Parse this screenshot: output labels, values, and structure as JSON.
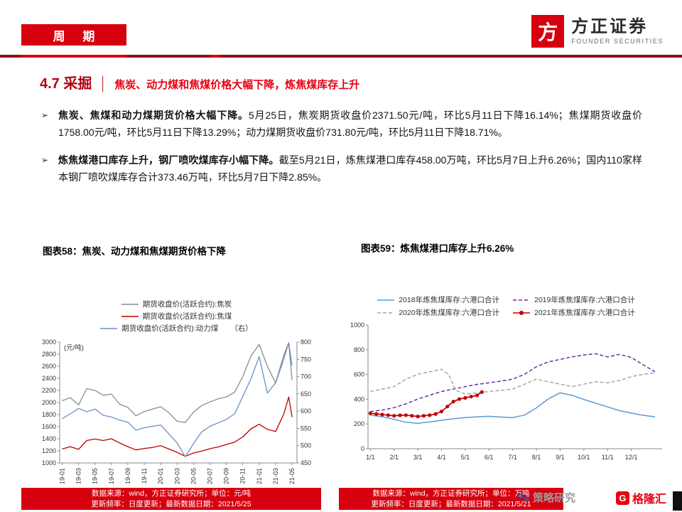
{
  "colors": {
    "accent": "#D7000F",
    "rule_dark": "#8E1216",
    "title_red": "#B00012",
    "subtitle_red": "#E60012",
    "coke_gray": "#8C8C8C",
    "coking_red": "#C00000",
    "thermal_blue": "#6B91C9",
    "y2018_blue": "#5B9BD5",
    "y2019_purple": "#7030A0",
    "y2020_gray": "#A6A6A6",
    "y2021_red": "#C00000"
  },
  "header": {
    "band": "周 期",
    "logo_mark": "方",
    "logo_cn": "方正证券",
    "logo_en": "FOUNDER SECURITIES"
  },
  "title": {
    "number": "4.7 采掘",
    "separator": "│",
    "subtitle": "焦炭、动力煤和焦煤价格大幅下降，炼焦煤库存上升"
  },
  "bullets": {
    "marker": "➢",
    "items": [
      {
        "lead": "焦炭、焦煤和动力煤期货价格大幅下降。",
        "rest": "5月25日，焦炭期货收盘价2371.50元/吨，环比5月11日下降16.14%；焦煤期货收盘价1758.00元/吨，环比5月11日下降13.29%；动力煤期货收盘价731.80元/吨，环比5月11日下降18.71%。"
      },
      {
        "lead": "炼焦煤港口库存上升，钢厂喷吹煤库存小幅下降。",
        "rest": "截至5月21日，炼焦煤港口库存458.00万吨，环比5月7日上升6.26%；国内110家样本钢厂喷吹煤库存合计373.46万吨，环比5月7日下降2.85%。"
      }
    ]
  },
  "chart_data": [
    {
      "type": "line",
      "caption": "图表58：焦炭、动力煤和焦煤期货价格下降",
      "unit_left": "(元/吨)",
      "ylim_left": [
        1000,
        3000
      ],
      "yticks_left": [
        1000,
        1200,
        1400,
        1600,
        1800,
        2000,
        2200,
        2400,
        2600,
        2800,
        3000
      ],
      "ylim_right": [
        450,
        800
      ],
      "yticks_right": [
        450,
        500,
        550,
        600,
        650,
        700,
        750,
        800
      ],
      "xlim": [
        -0.3,
        28.6
      ],
      "x_rotate": true,
      "xticks": [
        {
          "x": 0,
          "label": "19-01"
        },
        {
          "x": 2,
          "label": "19-03"
        },
        {
          "x": 4,
          "label": "19-05"
        },
        {
          "x": 6,
          "label": "19-07"
        },
        {
          "x": 8,
          "label": "19-09"
        },
        {
          "x": 10,
          "label": "19-11"
        },
        {
          "x": 12,
          "label": "20-01"
        },
        {
          "x": 14,
          "label": "20-03"
        },
        {
          "x": 16,
          "label": "20-05"
        },
        {
          "x": 18,
          "label": "20-07"
        },
        {
          "x": 20,
          "label": "20-09"
        },
        {
          "x": 22,
          "label": "20-11"
        },
        {
          "x": 24,
          "label": "21-01"
        },
        {
          "x": 26,
          "label": "21-03"
        },
        {
          "x": 28,
          "label": "21-05"
        }
      ],
      "series": [
        {
          "name": "期货收盘价(活跃合约):焦炭",
          "color": "#8C8C8C",
          "axis": "left",
          "width": 1.3,
          "points": [
            [
              0,
              2030
            ],
            [
              1,
              2080
            ],
            [
              2,
              1960
            ],
            [
              3,
              2230
            ],
            [
              4,
              2200
            ],
            [
              5,
              2120
            ],
            [
              6,
              2140
            ],
            [
              7,
              1970
            ],
            [
              8,
              1920
            ],
            [
              9,
              1780
            ],
            [
              10,
              1850
            ],
            [
              11,
              1890
            ],
            [
              12,
              1930
            ],
            [
              13,
              1830
            ],
            [
              14,
              1690
            ],
            [
              15,
              1670
            ],
            [
              16,
              1840
            ],
            [
              17,
              1950
            ],
            [
              18,
              2010
            ],
            [
              19,
              2060
            ],
            [
              20,
              2090
            ],
            [
              21,
              2170
            ],
            [
              22,
              2430
            ],
            [
              23,
              2770
            ],
            [
              24,
              2960
            ],
            [
              25,
              2600
            ],
            [
              26,
              2320
            ],
            [
              27,
              2720
            ],
            [
              27.6,
              2990
            ],
            [
              28,
              2371
            ]
          ]
        },
        {
          "name": "期货收盘价(活跃合约):焦煤",
          "color": "#C00000",
          "axis": "left",
          "width": 1.3,
          "points": [
            [
              0,
              1230
            ],
            [
              1,
              1270
            ],
            [
              2,
              1225
            ],
            [
              3,
              1370
            ],
            [
              4,
              1395
            ],
            [
              5,
              1370
            ],
            [
              6,
              1400
            ],
            [
              7,
              1330
            ],
            [
              8,
              1270
            ],
            [
              9,
              1215
            ],
            [
              10,
              1240
            ],
            [
              11,
              1255
            ],
            [
              12,
              1285
            ],
            [
              13,
              1230
            ],
            [
              14,
              1175
            ],
            [
              15,
              1110
            ],
            [
              16,
              1165
            ],
            [
              17,
              1195
            ],
            [
              18,
              1235
            ],
            [
              19,
              1265
            ],
            [
              20,
              1305
            ],
            [
              21,
              1345
            ],
            [
              22,
              1430
            ],
            [
              23,
              1565
            ],
            [
              24,
              1640
            ],
            [
              25,
              1555
            ],
            [
              26,
              1520
            ],
            [
              27,
              1810
            ],
            [
              27.6,
              2090
            ],
            [
              28,
              1758
            ]
          ]
        },
        {
          "name": "期货收盘价(活跃合约):动力煤",
          "suffix": "（右）",
          "color": "#6B91C9",
          "axis": "right",
          "width": 1.3,
          "points": [
            [
              0,
              578
            ],
            [
              1,
              592
            ],
            [
              2,
              608
            ],
            [
              3,
              598
            ],
            [
              4,
              606
            ],
            [
              5,
              588
            ],
            [
              6,
              583
            ],
            [
              7,
              574
            ],
            [
              8,
              568
            ],
            [
              9,
              545
            ],
            [
              10,
              552
            ],
            [
              11,
              556
            ],
            [
              12,
              560
            ],
            [
              13,
              534
            ],
            [
              14,
              508
            ],
            [
              15,
              468
            ],
            [
              16,
              506
            ],
            [
              17,
              540
            ],
            [
              18,
              556
            ],
            [
              19,
              566
            ],
            [
              20,
              576
            ],
            [
              21,
              592
            ],
            [
              22,
              642
            ],
            [
              23,
              694
            ],
            [
              24,
              758
            ],
            [
              25,
              652
            ],
            [
              26,
              682
            ],
            [
              27,
              762
            ],
            [
              27.6,
              798
            ],
            [
              28,
              732
            ]
          ]
        }
      ]
    },
    {
      "type": "line",
      "caption": "图表59：炼焦煤港口库存上升6.26%",
      "ylim_left": [
        0,
        1000
      ],
      "yticks_left": [
        0,
        200,
        400,
        600,
        800,
        1000
      ],
      "xlim": [
        -0.1,
        12.3
      ],
      "x_rotate": false,
      "xticks": [
        {
          "x": 0,
          "label": "1/1"
        },
        {
          "x": 1,
          "label": "2/1"
        },
        {
          "x": 2,
          "label": "3/1"
        },
        {
          "x": 3,
          "label": "4/1"
        },
        {
          "x": 4,
          "label": "5/1"
        },
        {
          "x": 5,
          "label": "6/1"
        },
        {
          "x": 6,
          "label": "7/1"
        },
        {
          "x": 7,
          "label": "8/1"
        },
        {
          "x": 8,
          "label": "9/1"
        },
        {
          "x": 9,
          "label": "10/1"
        },
        {
          "x": 10,
          "label": "11/1"
        },
        {
          "x": 11,
          "label": "12/1"
        }
      ],
      "series": [
        {
          "name": "2018年炼焦煤库存:六港口合计",
          "color": "#5B9BD5",
          "axis": "left",
          "width": 1.5,
          "points": [
            [
              0,
              272
            ],
            [
              0.5,
              258
            ],
            [
              1,
              238
            ],
            [
              1.5,
              214
            ],
            [
              2,
              206
            ],
            [
              2.5,
              216
            ],
            [
              3,
              230
            ],
            [
              3.5,
              242
            ],
            [
              4,
              252
            ],
            [
              4.5,
              258
            ],
            [
              5,
              262
            ],
            [
              5.5,
              256
            ],
            [
              6,
              252
            ],
            [
              6.5,
              272
            ],
            [
              7,
              330
            ],
            [
              7.5,
              402
            ],
            [
              8,
              452
            ],
            [
              8.5,
              432
            ],
            [
              9,
              398
            ],
            [
              9.5,
              368
            ],
            [
              10,
              338
            ],
            [
              10.5,
              308
            ],
            [
              11,
              288
            ],
            [
              11.5,
              270
            ],
            [
              12,
              258
            ]
          ]
        },
        {
          "name": "2019年炼焦煤库存:六港口合计",
          "color": "#7030A0",
          "axis": "left",
          "width": 1.5,
          "dash": "5 3",
          "points": [
            [
              0,
              300
            ],
            [
              0.5,
              312
            ],
            [
              1,
              332
            ],
            [
              1.5,
              362
            ],
            [
              2,
              402
            ],
            [
              2.5,
              432
            ],
            [
              3,
              462
            ],
            [
              3.5,
              482
            ],
            [
              4,
              502
            ],
            [
              4.5,
              520
            ],
            [
              5,
              532
            ],
            [
              5.5,
              546
            ],
            [
              6,
              562
            ],
            [
              6.5,
              602
            ],
            [
              7,
              662
            ],
            [
              7.5,
              702
            ],
            [
              8,
              722
            ],
            [
              8.5,
              742
            ],
            [
              9,
              758
            ],
            [
              9.5,
              768
            ],
            [
              10,
              742
            ],
            [
              10.5,
              762
            ],
            [
              11,
              738
            ],
            [
              11.5,
              678
            ],
            [
              12,
              622
            ]
          ]
        },
        {
          "name": "2020年炼焦煤库存:六港口合计",
          "color": "#A6A6A6",
          "axis": "left",
          "width": 1.5,
          "dash": "5 3",
          "points": [
            [
              0,
              462
            ],
            [
              0.5,
              482
            ],
            [
              1,
              502
            ],
            [
              1.5,
              562
            ],
            [
              2,
              602
            ],
            [
              2.5,
              622
            ],
            [
              3,
              642
            ],
            [
              3.3,
              600
            ],
            [
              3.6,
              472
            ],
            [
              4,
              442
            ],
            [
              4.5,
              452
            ],
            [
              5,
              462
            ],
            [
              5.5,
              472
            ],
            [
              6,
              482
            ],
            [
              6.5,
              522
            ],
            [
              7,
              562
            ],
            [
              7.5,
              542
            ],
            [
              8,
              522
            ],
            [
              8.5,
              502
            ],
            [
              9,
              522
            ],
            [
              9.5,
              542
            ],
            [
              10,
              532
            ],
            [
              10.5,
              552
            ],
            [
              11,
              582
            ],
            [
              11.5,
              602
            ],
            [
              12,
              612
            ]
          ]
        },
        {
          "name": "2021年炼焦煤库存:六港口合计",
          "color": "#C00000",
          "axis": "left",
          "width": 1.7,
          "marker": true,
          "points": [
            [
              0,
              286
            ],
            [
              0.25,
              281
            ],
            [
              0.5,
              276
            ],
            [
              0.75,
              271
            ],
            [
              1,
              266
            ],
            [
              1.25,
              270
            ],
            [
              1.5,
              271
            ],
            [
              1.75,
              266
            ],
            [
              2,
              261
            ],
            [
              2.25,
              266
            ],
            [
              2.5,
              271
            ],
            [
              2.75,
              281
            ],
            [
              3,
              301
            ],
            [
              3.25,
              341
            ],
            [
              3.5,
              381
            ],
            [
              3.75,
              401
            ],
            [
              4,
              411
            ],
            [
              4.25,
              421
            ],
            [
              4.5,
              431
            ],
            [
              4.7,
              458
            ]
          ]
        }
      ]
    }
  ],
  "footers": [
    {
      "line1": "数据来源：wind，方正证券研究所；单位：元/吨",
      "line2": "更新频率：日度更新；最新数据日期：2021/5/25"
    },
    {
      "line1": "数据来源：wind，方正证券研究所；单位：万吨",
      "line2": "更新频率：日度更新；最新数据日期：2021/5/21"
    }
  ],
  "watermark": {
    "paw": "🐾",
    "label": "策略研究",
    "brand_glyph": "G",
    "brand": "格隆汇"
  }
}
